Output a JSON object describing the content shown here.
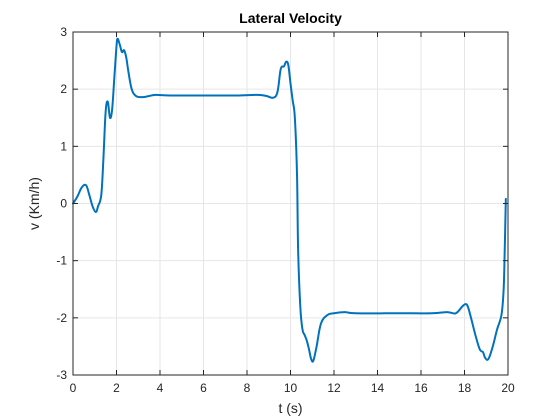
{
  "chart_data": {
    "type": "line",
    "title": "Lateral Velocity",
    "xlabel": "t (s)",
    "ylabel": "v (Km/h)",
    "xlim": [
      0,
      20
    ],
    "ylim": [
      -3,
      3
    ],
    "xticks": [
      0,
      2,
      4,
      6,
      8,
      10,
      12,
      14,
      16,
      18,
      20
    ],
    "yticks": [
      -3,
      -2,
      -1,
      0,
      1,
      2,
      3
    ],
    "xtick_labels": [
      "0",
      "2",
      "4",
      "6",
      "8",
      "10",
      "12",
      "14",
      "16",
      "18",
      "20"
    ],
    "ytick_labels": [
      "-3",
      "-2",
      "-1",
      "0",
      "1",
      "2",
      "3"
    ],
    "grid": true,
    "colors": {
      "line": "#0072BD",
      "grid": "#e6e6e6",
      "axis": "#262626"
    },
    "series": [
      {
        "x": [
          0,
          0.2,
          0.4,
          0.6,
          0.75,
          0.9,
          1.05,
          1.15,
          1.3,
          1.4,
          1.5,
          1.6,
          1.7,
          1.8,
          1.9,
          2.0,
          2.05,
          2.15,
          2.25,
          2.35,
          2.45,
          2.55,
          2.7,
          2.9,
          3.2,
          3.5,
          3.8,
          4.5,
          6,
          7.5,
          8.5,
          8.9,
          9.2,
          9.4,
          9.55,
          9.7,
          9.8,
          9.9,
          10.0,
          10.1,
          10.2,
          10.3,
          10.35,
          10.45,
          10.55,
          10.65,
          10.75,
          10.85,
          10.95,
          11.05,
          11.2,
          11.4,
          11.7,
          12.0,
          12.5,
          13,
          15,
          16.5,
          17.2,
          17.6,
          17.9,
          18.05,
          18.15,
          18.3,
          18.5,
          18.7,
          18.85,
          18.95,
          19.1,
          19.3,
          19.5,
          19.7,
          19.8,
          19.85,
          19.9
        ],
        "y": [
          0.0,
          0.12,
          0.28,
          0.32,
          0.15,
          -0.05,
          -0.15,
          -0.05,
          0.15,
          0.8,
          1.6,
          1.78,
          1.5,
          1.65,
          2.2,
          2.75,
          2.88,
          2.78,
          2.65,
          2.68,
          2.55,
          2.3,
          2.0,
          1.88,
          1.86,
          1.88,
          1.9,
          1.89,
          1.89,
          1.89,
          1.9,
          1.88,
          1.85,
          1.95,
          2.35,
          2.4,
          2.48,
          2.42,
          2.1,
          1.8,
          1.5,
          0.5,
          -0.8,
          -1.8,
          -2.2,
          -2.3,
          -2.4,
          -2.55,
          -2.72,
          -2.75,
          -2.5,
          -2.1,
          -1.95,
          -1.92,
          -1.9,
          -1.92,
          -1.92,
          -1.92,
          -1.9,
          -1.92,
          -1.8,
          -1.76,
          -1.8,
          -2.0,
          -2.3,
          -2.55,
          -2.6,
          -2.7,
          -2.72,
          -2.5,
          -2.2,
          -1.95,
          -1.5,
          -0.8,
          0.08
        ]
      }
    ]
  }
}
